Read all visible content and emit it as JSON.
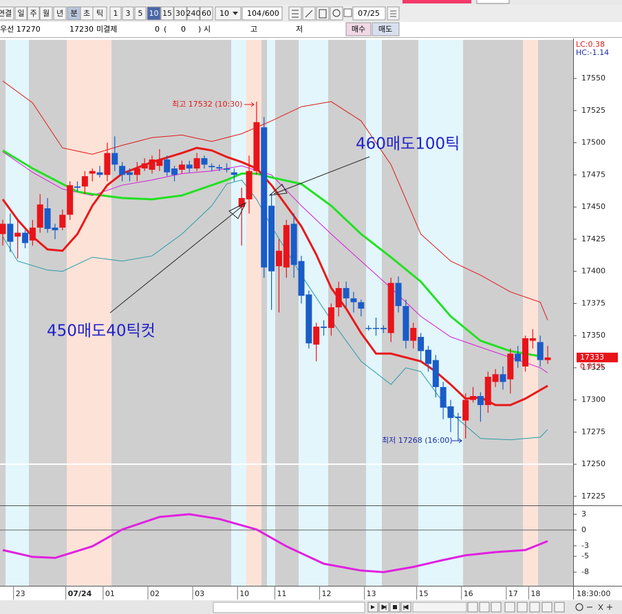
{
  "toolbar": {
    "items": [
      "연결",
      "일",
      "주",
      "월",
      "년",
      "분",
      "초",
      "틱",
      "1",
      "3",
      "5",
      "10",
      "15",
      "30",
      "240",
      "60"
    ],
    "period": "10",
    "count": "104",
    "count_max": "/600",
    "date": "07/25"
  },
  "info_bar": {
    "items": [
      "우선 17270",
      "17230",
      "미결제",
      "0",
      "(",
      "0",
      ")",
      "시",
      "고",
      "저"
    ],
    "buy": "매수",
    "sell": "매도"
  },
  "chart_data": [
    {
      "type": "candlestick",
      "categories": [
        null,
        null,
        "23",
        null,
        null,
        null,
        null,
        null,
        null,
        "07/24",
        null,
        null,
        null,
        null,
        "01",
        null,
        null,
        null,
        null,
        null,
        "02",
        null,
        null,
        null,
        null,
        null,
        "03",
        null,
        null,
        null,
        null,
        null,
        "10",
        null,
        null,
        null,
        null,
        "11",
        null,
        null,
        null,
        null,
        null,
        "12",
        null,
        null,
        null,
        null,
        null,
        "13",
        null,
        null,
        null,
        null,
        null,
        null,
        "15",
        null,
        null,
        null,
        null,
        null,
        "16",
        null,
        null,
        null,
        null,
        null,
        "17",
        null,
        null,
        "18",
        null,
        null
      ],
      "open": [
        17429,
        17437,
        17427,
        17430,
        17424,
        17434,
        17449,
        17434,
        17434,
        17444,
        17466,
        17466,
        17476,
        17477,
        17475,
        17492,
        17482,
        17477,
        17475,
        17480,
        17479,
        17482,
        17487,
        17480,
        17479,
        17483,
        17480,
        17488,
        17482,
        17481,
        17480,
        17477,
        17450,
        17456,
        17478,
        17512,
        17451,
        17404,
        17403,
        17437,
        17408,
        17382,
        17343,
        17357,
        17356,
        17372,
        17387,
        17379,
        17376,
        17356,
        17356,
        17356,
        17352,
        17391,
        17373,
        17346,
        17349,
        17339,
        17331,
        17310,
        17295,
        17287,
        17284,
        17300,
        17303,
        17296,
        17314,
        17320,
        17316,
        17336,
        17326,
        17346,
        17345,
        17331
      ],
      "high": [
        17440,
        17445,
        17440,
        17432,
        17440,
        17460,
        17457,
        17437,
        17448,
        17470,
        17470,
        17478,
        17480,
        17482,
        17500,
        17505,
        17485,
        17480,
        17485,
        17488,
        17490,
        17495,
        17490,
        17482,
        17486,
        17486,
        17492,
        17490,
        17484,
        17483,
        17484,
        17480,
        17465,
        17490,
        17532,
        17520,
        17460,
        17425,
        17440,
        17445,
        17412,
        17385,
        17360,
        17362,
        17375,
        17392,
        17392,
        17384,
        17378,
        17358,
        17364,
        17358,
        17395,
        17396,
        17378,
        17360,
        17352,
        17342,
        17335,
        17314,
        17300,
        17290,
        17305,
        17310,
        17306,
        17322,
        17324,
        17326,
        17340,
        17342,
        17350,
        17355,
        17350,
        17342
      ],
      "low": [
        17420,
        17415,
        17410,
        17418,
        17420,
        17430,
        17430,
        17425,
        17432,
        17440,
        17462,
        17460,
        17470,
        17473,
        17470,
        17478,
        17470,
        17470,
        17470,
        17478,
        17476,
        17478,
        17474,
        17470,
        17476,
        17477,
        17478,
        17480,
        17478,
        17478,
        17477,
        17470,
        17420,
        17445,
        17475,
        17395,
        17370,
        17368,
        17395,
        17395,
        17375,
        17340,
        17330,
        17350,
        17350,
        17365,
        17372,
        17368,
        17365,
        17354,
        17350,
        17352,
        17345,
        17368,
        17340,
        17340,
        17330,
        17322,
        17302,
        17285,
        17275,
        17268,
        17270,
        17298,
        17283,
        17290,
        17310,
        17308,
        17305,
        17325,
        17322,
        17340,
        17326,
        17328
      ],
      "close": [
        17437,
        17423,
        17430,
        17422,
        17434,
        17452,
        17433,
        17432,
        17444,
        17467,
        17465,
        17474,
        17478,
        17475,
        17492,
        17483,
        17475,
        17475,
        17480,
        17484,
        17487,
        17487,
        17477,
        17475,
        17483,
        17480,
        17488,
        17483,
        17481,
        17480,
        17479,
        17475,
        17457,
        17478,
        17516,
        17403,
        17400,
        17416,
        17436,
        17405,
        17381,
        17344,
        17357,
        17356,
        17372,
        17387,
        17379,
        17376,
        17371,
        17356,
        17356,
        17355,
        17391,
        17373,
        17346,
        17356,
        17338,
        17328,
        17310,
        17294,
        17286,
        17286,
        17300,
        17303,
        17296,
        17318,
        17320,
        17314,
        17336,
        17330,
        17348,
        17348,
        17331,
        17333
      ],
      "up_color": "#e8141a",
      "down_color": "#1a5cc8",
      "ylim": [
        17218,
        17580
      ],
      "yticks": [
        17225,
        17250,
        17275,
        17300,
        17325,
        17350,
        17375,
        17400,
        17425,
        17450,
        17475,
        17500,
        17525,
        17550
      ],
      "horizontal_line": 17250,
      "last_price": 17333,
      "change": "0.01%",
      "lc": "LC:0.38",
      "hc": "HC:-1.14",
      "time_label": "18:30:00",
      "lines": [
        {
          "color": "#e01818",
          "width": 1,
          "x": [
            0,
            4,
            8,
            12,
            16,
            20,
            24,
            28,
            32,
            36,
            40,
            44,
            48,
            52,
            56,
            60,
            64,
            68,
            72,
            73
          ],
          "values": [
            17548,
            17531,
            17496,
            17491,
            17498,
            17504,
            17506,
            17501,
            17507,
            17517,
            17528,
            17532,
            17517,
            17483,
            17429,
            17408,
            17397,
            17384,
            17376,
            17362
          ]
        },
        {
          "color": "#2a9aa8",
          "width": 1,
          "x": [
            0,
            2,
            6,
            8,
            12,
            16,
            20,
            24,
            28,
            30,
            32,
            34,
            36,
            40,
            44,
            48,
            52,
            54,
            56,
            60,
            64,
            68,
            72,
            73
          ],
          "values": [
            17427,
            17408,
            17401,
            17400,
            17411,
            17408,
            17412,
            17429,
            17451,
            17468,
            17471,
            17456,
            17435,
            17397,
            17362,
            17330,
            17312,
            17325,
            17322,
            17290,
            17270,
            17269,
            17271,
            17277
          ]
        },
        {
          "color": "#d818d8",
          "width": 1,
          "x": [
            0,
            4,
            8,
            12,
            16,
            20,
            24,
            28,
            32,
            36,
            40,
            44,
            48,
            52,
            56,
            60,
            64,
            68,
            72,
            73
          ],
          "values": [
            17493,
            17477,
            17464,
            17459,
            17467,
            17471,
            17476,
            17478,
            17482,
            17475,
            17451,
            17429,
            17408,
            17387,
            17365,
            17349,
            17341,
            17333,
            17325,
            17321
          ]
        },
        {
          "color": "#22e022",
          "width": 3,
          "x": [
            0,
            4,
            8,
            10,
            12,
            16,
            20,
            24,
            28,
            30,
            32,
            34,
            36,
            40,
            44,
            48,
            52,
            56,
            60,
            64,
            68,
            72
          ],
          "values": [
            17494,
            17480,
            17468,
            17462,
            17460,
            17457,
            17456,
            17459,
            17467,
            17471,
            17476,
            17476,
            17473,
            17468,
            17451,
            17429,
            17411,
            17392,
            17365,
            17346,
            17338,
            17334
          ]
        },
        {
          "color": "#e81818",
          "width": 3,
          "x": [
            0,
            2,
            4,
            6,
            8,
            10,
            12,
            14,
            16,
            20,
            24,
            26,
            28,
            30,
            32,
            34,
            36,
            38,
            40,
            42,
            44,
            46,
            48,
            50,
            52,
            56,
            58,
            60,
            62,
            64,
            66,
            68,
            70,
            73
          ],
          "values": [
            17456,
            17440,
            17427,
            17417,
            17416,
            17429,
            17451,
            17467,
            17476,
            17485,
            17492,
            17496,
            17494,
            17489,
            17485,
            17480,
            17467,
            17451,
            17435,
            17413,
            17387,
            17371,
            17352,
            17336,
            17336,
            17330,
            17322,
            17312,
            17301,
            17302,
            17296,
            17296,
            17301,
            17311
          ]
        }
      ],
      "annotations": {
        "high": "최고 17532 (10:30)",
        "low": "최저 17268 (16:00)",
        "note_sell_100": "460매도100틱",
        "note_sell_40": "450매도40틱컷"
      }
    },
    {
      "type": "line",
      "ylim": [
        -10.6,
        4.3
      ],
      "yticks": [
        3,
        0,
        -3,
        -5,
        -8
      ],
      "reference_line": 0,
      "series": [
        {
          "color": "#e020e0",
          "x": [
            0,
            4,
            7,
            12,
            16,
            21,
            25,
            29,
            34,
            38,
            43,
            48,
            51,
            55,
            59,
            62,
            66,
            70,
            73
          ],
          "values": [
            -3.8,
            -5.1,
            -5.3,
            -3.1,
            0.1,
            2.5,
            3,
            2.1,
            0.1,
            -3.1,
            -6.4,
            -7.7,
            -8,
            -7,
            -5.7,
            -4.8,
            -4.2,
            -3.8,
            -2.1
          ]
        }
      ]
    }
  ]
}
